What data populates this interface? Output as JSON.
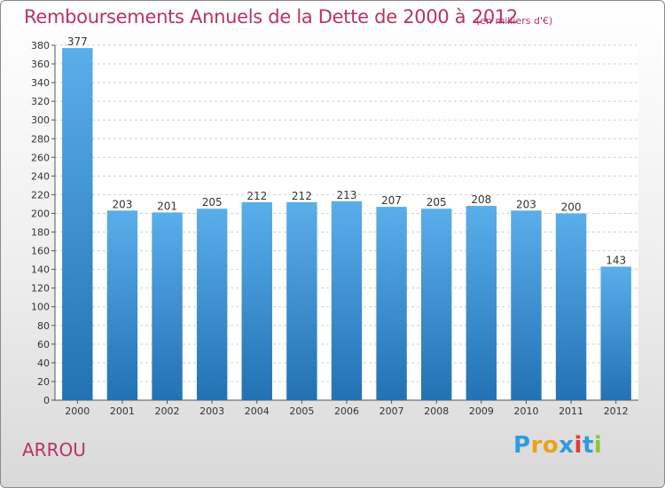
{
  "chart_data": {
    "type": "bar",
    "title": "Remboursements Annuels de la Dette de 2000 à 2012",
    "subtitle": "(en milliers d'€)",
    "categories": [
      "2000",
      "2001",
      "2002",
      "2003",
      "2004",
      "2005",
      "2006",
      "2007",
      "2008",
      "2009",
      "2010",
      "2011",
      "2012"
    ],
    "values": [
      377,
      203,
      201,
      205,
      212,
      212,
      213,
      207,
      205,
      208,
      203,
      200,
      143
    ],
    "ylim": [
      0,
      380
    ],
    "ytick_step": 20,
    "grid": true,
    "bar_colors": {
      "top": "#5aaeea",
      "bottom": "#2272b4"
    }
  },
  "footer": {
    "commune": "ARROU",
    "brand": "Proxiti",
    "brand_colors": [
      "#2e9be0",
      "#e8a317",
      "#e8a317",
      "#2e9be0",
      "#e23a3a",
      "#2e9be0",
      "#8cc63f"
    ]
  }
}
